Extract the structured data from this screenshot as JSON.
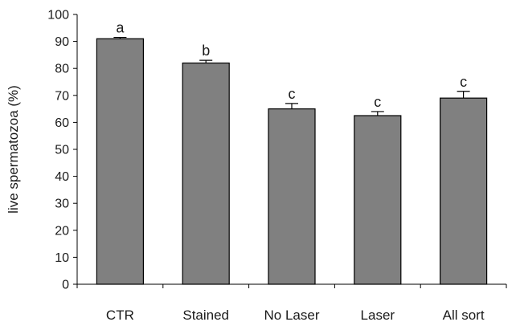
{
  "chart_data": {
    "type": "bar",
    "title": "",
    "xlabel": "",
    "ylabel": "live spermatozoa (%)",
    "ylim": [
      0,
      100
    ],
    "yticks": [
      0,
      10,
      20,
      30,
      40,
      50,
      60,
      70,
      80,
      90,
      100
    ],
    "categories": [
      "CTR",
      "Stained",
      "No Laser",
      "Laser",
      "All sort"
    ],
    "values": [
      91,
      82,
      65,
      62.5,
      69
    ],
    "error_upper": [
      0.5,
      1,
      2,
      1.5,
      2.5
    ],
    "significance_letters": [
      "a",
      "b",
      "c",
      "c",
      "c"
    ],
    "grid": false,
    "legend": "none",
    "colors": {
      "bar_fill": "#808080",
      "bar_stroke": "#000000",
      "axis": "#000000"
    }
  }
}
